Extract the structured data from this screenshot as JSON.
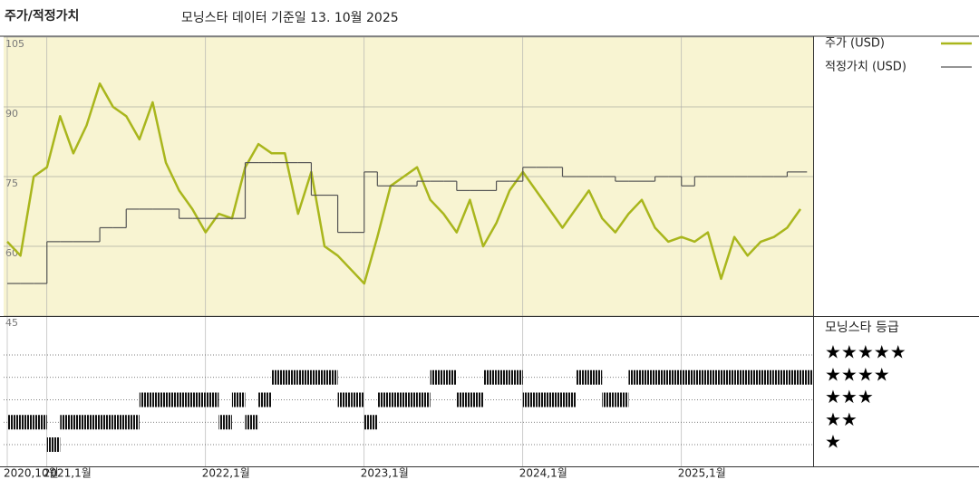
{
  "chart_data": [
    {
      "type": "line",
      "title": "주가/적정가치",
      "subtitle": "모닝스타 데이터 기준일 13. 10월 2025",
      "x": [
        "2020-10",
        "2020-11",
        "2020-12",
        "2021-01",
        "2021-02",
        "2021-03",
        "2021-04",
        "2021-05",
        "2021-06",
        "2021-07",
        "2021-08",
        "2021-09",
        "2021-10",
        "2021-11",
        "2021-12",
        "2022-01",
        "2022-02",
        "2022-03",
        "2022-04",
        "2022-05",
        "2022-06",
        "2022-07",
        "2022-08",
        "2022-09",
        "2022-10",
        "2022-11",
        "2022-12",
        "2023-01",
        "2023-02",
        "2023-03",
        "2023-04",
        "2023-05",
        "2023-06",
        "2023-07",
        "2023-08",
        "2023-09",
        "2023-10",
        "2023-11",
        "2023-12",
        "2024-01",
        "2024-02",
        "2024-03",
        "2024-04",
        "2024-05",
        "2024-06",
        "2024-07",
        "2024-08",
        "2024-09",
        "2024-10",
        "2024-11",
        "2024-12",
        "2025-01",
        "2025-02",
        "2025-03",
        "2025-04",
        "2025-05",
        "2025-06",
        "2025-07",
        "2025-08",
        "2025-09",
        "2025-10"
      ],
      "xlim": [
        "2020-10",
        "2025-10"
      ],
      "xticks": [
        {
          "value": "2020-10",
          "label": "2020,10월"
        },
        {
          "value": "2021-01",
          "label": "2021,1월"
        },
        {
          "value": "2022-01",
          "label": "2022,1월"
        },
        {
          "value": "2023-01",
          "label": "2023,1월"
        },
        {
          "value": "2024-01",
          "label": "2024,1월"
        },
        {
          "value": "2025-01",
          "label": "2025,1월"
        }
      ],
      "ylim": [
        45,
        105
      ],
      "yticks": [
        45,
        60,
        75,
        90,
        105
      ],
      "grid": true,
      "legend": "right",
      "series": [
        {
          "name": "주가 (USD)",
          "color": "#a9b61c",
          "values": [
            61,
            58,
            75,
            77,
            88,
            80,
            86,
            95,
            90,
            88,
            83,
            91,
            78,
            72,
            68,
            63,
            67,
            66,
            77,
            82,
            80,
            80,
            67,
            76,
            60,
            58,
            55,
            52,
            62,
            73,
            75,
            77,
            70,
            67,
            63,
            70,
            60,
            65,
            72,
            76,
            72,
            68,
            64,
            68,
            72,
            66,
            63,
            67,
            70,
            64,
            61,
            62,
            61,
            63,
            53,
            62,
            58,
            61,
            62,
            64,
            68
          ]
        },
        {
          "name": "적정가치 (USD)",
          "color": "#555555",
          "step": true,
          "values": [
            52,
            52,
            52,
            61,
            61,
            61,
            61,
            64,
            64,
            68,
            68,
            68,
            68,
            66,
            66,
            66,
            66,
            66,
            78,
            78,
            78,
            78,
            78,
            71,
            71,
            63,
            63,
            76,
            73,
            73,
            73,
            74,
            74,
            74,
            72,
            72,
            72,
            74,
            74,
            77,
            77,
            77,
            75,
            75,
            75,
            75,
            74,
            74,
            74,
            75,
            75,
            73,
            75,
            75,
            75,
            75,
            75,
            75,
            75,
            76,
            76
          ]
        }
      ]
    },
    {
      "type": "rating",
      "title": "모닝스타 등급",
      "x": [
        "2020-10",
        "2020-11",
        "2020-12",
        "2021-01",
        "2021-02",
        "2021-03",
        "2021-04",
        "2021-05",
        "2021-06",
        "2021-07",
        "2021-08",
        "2021-09",
        "2021-10",
        "2021-11",
        "2021-12",
        "2022-01",
        "2022-02",
        "2022-03",
        "2022-04",
        "2022-05",
        "2022-06",
        "2022-07",
        "2022-08",
        "2022-09",
        "2022-10",
        "2022-11",
        "2022-12",
        "2023-01",
        "2023-02",
        "2023-03",
        "2023-04",
        "2023-05",
        "2023-06",
        "2023-07",
        "2023-08",
        "2023-09",
        "2023-10",
        "2023-11",
        "2023-12",
        "2024-01",
        "2024-02",
        "2024-03",
        "2024-04",
        "2024-05",
        "2024-06",
        "2024-07",
        "2024-08",
        "2024-09",
        "2024-10",
        "2024-11",
        "2024-12",
        "2025-01",
        "2025-02",
        "2025-03",
        "2025-04",
        "2025-05",
        "2025-06",
        "2025-07",
        "2025-08",
        "2025-09",
        "2025-10"
      ],
      "ylim": [
        1,
        5
      ],
      "yticks": [
        {
          "value": 5,
          "label": "★★★★★"
        },
        {
          "value": 4,
          "label": "★★★★"
        },
        {
          "value": 3,
          "label": "★★★"
        },
        {
          "value": 2,
          "label": "★★"
        },
        {
          "value": 1,
          "label": "★"
        }
      ],
      "color": "#111111",
      "values": [
        2,
        2,
        2,
        1,
        2,
        2,
        2,
        2,
        2,
        2,
        3,
        3,
        3,
        3,
        3,
        3,
        2,
        3,
        2,
        3,
        4,
        4,
        4,
        4,
        4,
        3,
        3,
        2,
        3,
        3,
        3,
        3,
        4,
        4,
        3,
        3,
        4,
        4,
        4,
        3,
        3,
        3,
        3,
        4,
        4,
        3,
        3,
        4,
        4,
        4,
        4,
        4,
        4,
        4,
        4,
        4,
        4,
        4,
        4,
        4,
        4
      ]
    }
  ]
}
